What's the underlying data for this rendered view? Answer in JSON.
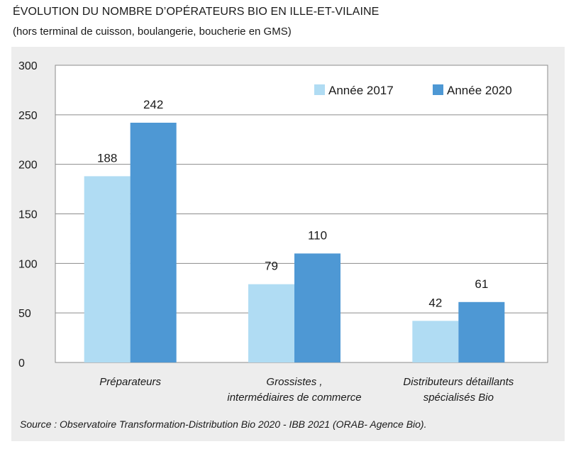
{
  "header": {
    "title": "ÉVOLUTION DU NOMBRE D’OPÉRATEURS BIO EN ILLE-ET-VILAINE",
    "subtitle": "(hors terminal de cuisson, boulangerie, boucherie en GMS)"
  },
  "footer": {
    "source": "Source : Observatoire Transformation-Distribution Bio 2020 - IBB 2021 (ORAB- Agence Bio)."
  },
  "chart_data": {
    "type": "bar",
    "categories": [
      [
        "Préparateurs"
      ],
      [
        "Grossistes ,",
        "intermédiaires de commerce"
      ],
      [
        "Distributeurs détaillants",
        "spécialisés Bio"
      ]
    ],
    "series": [
      {
        "name": "Année 2017",
        "values": [
          188,
          79,
          42
        ],
        "color": "#b0dcf3"
      },
      {
        "name": "Année 2020",
        "values": [
          242,
          110,
          61
        ],
        "color": "#4e98d4"
      }
    ],
    "ylim": [
      0,
      300
    ],
    "yticks": [
      0,
      50,
      100,
      150,
      200,
      250,
      300
    ],
    "grid": true,
    "legend": "top-right",
    "data_labels": true
  }
}
